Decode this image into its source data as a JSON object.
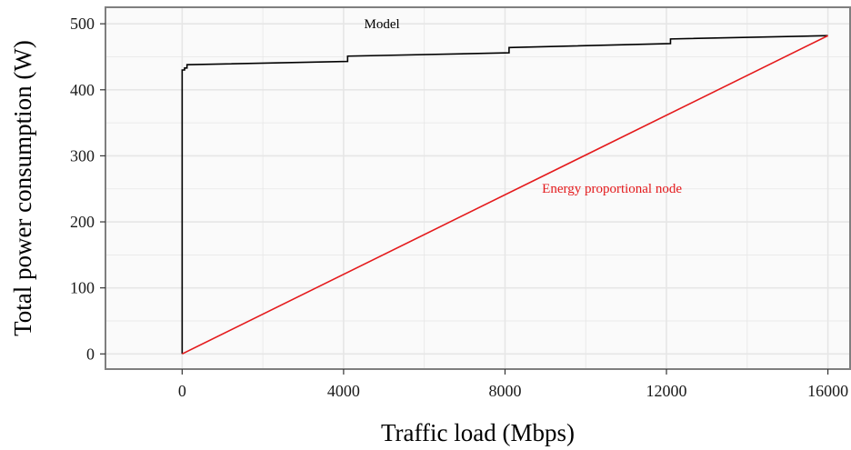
{
  "chart_data": {
    "type": "line",
    "xlabel": "Traffic load (Mbps)",
    "ylabel": "Total power consumption (W)",
    "xlim": [
      -1900,
      16550
    ],
    "ylim": [
      -23,
      525
    ],
    "x_ticks": [
      0,
      4000,
      8000,
      12000,
      16000
    ],
    "y_ticks": [
      0,
      100,
      200,
      300,
      400,
      500
    ],
    "grid": true,
    "legend": "none",
    "colors": {
      "panel_background": "#fafafa",
      "grid": "#e6e6e6",
      "border": "#7f7f7f"
    },
    "series": [
      {
        "name": "Model",
        "color": "#000000",
        "step": true,
        "x": [
          0,
          0,
          60,
          60,
          120,
          120,
          4100,
          4100,
          8100,
          8100,
          12100,
          12100,
          16000
        ],
        "y": [
          0,
          430,
          430,
          433,
          433,
          438,
          443,
          451,
          456,
          464,
          470,
          477,
          482
        ]
      },
      {
        "name": "Energy proportional node",
        "color": "#e41a1c",
        "step": false,
        "x": [
          0,
          16000
        ],
        "y": [
          0,
          482
        ]
      }
    ],
    "annotations": [
      {
        "text": "Model",
        "x": 4950,
        "y": 493,
        "color": "#000000"
      },
      {
        "text": "Energy proportional node",
        "x": 10650,
        "y": 244,
        "color": "#e41a1c"
      }
    ]
  }
}
